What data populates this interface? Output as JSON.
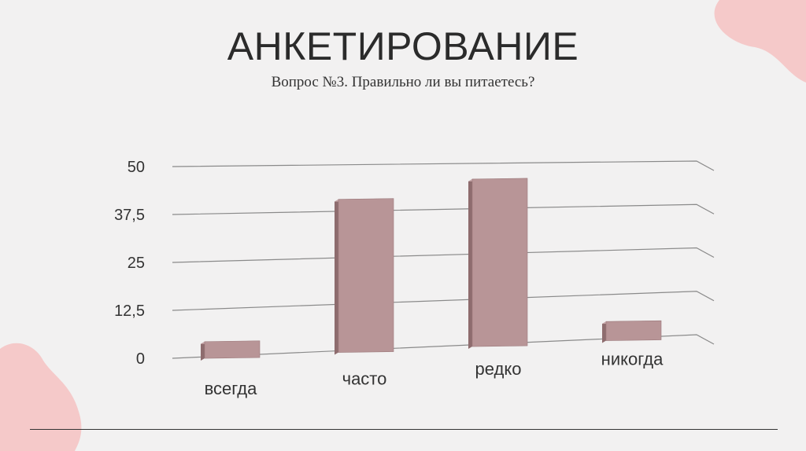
{
  "slide": {
    "title": "АНКЕТИРОВАНИЕ",
    "subtitle": "Вопрос №3. Правильно ли вы питаетесь?"
  },
  "colors": {
    "bar_front": "#b89597",
    "bar_side": "#8e6c6e",
    "bar_top": "#c9a9ab",
    "grid": "#8a8a8a",
    "blob": "#f5c9c9"
  },
  "chart_data": {
    "type": "bar",
    "categories": [
      "всегда",
      "часто",
      "редко",
      "никогда"
    ],
    "values": [
      4,
      41,
      46,
      5
    ],
    "yticks": [
      "0",
      "12,5",
      "25",
      "37,5",
      "50"
    ],
    "ylim": [
      0,
      50
    ],
    "grid": true,
    "legend": "none"
  }
}
